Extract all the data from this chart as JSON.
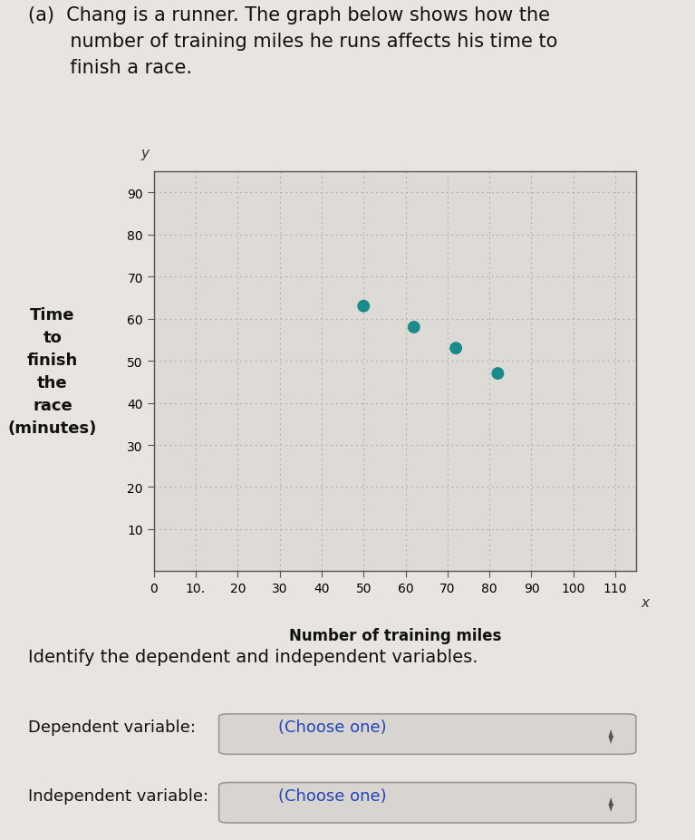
{
  "scatter_x": [
    50,
    62,
    72,
    82
  ],
  "scatter_y": [
    63,
    58,
    53,
    47
  ],
  "dot_color": "#1a8a8a",
  "dot_size": 100,
  "xlabel": "Number of training miles",
  "ylabel_lines": [
    "Time",
    "to",
    "finish",
    "the",
    "race",
    "(minutes)"
  ],
  "xlim": [
    0,
    115
  ],
  "ylim": [
    0,
    95
  ],
  "xticks": [
    0,
    10,
    20,
    30,
    40,
    50,
    60,
    70,
    80,
    90,
    100,
    110
  ],
  "yticks": [
    10,
    20,
    30,
    40,
    50,
    60,
    70,
    80,
    90
  ],
  "grid_color": "#b8b4b0",
  "plot_bg_color": "#dedad6",
  "outer_bg": "#c8c4c0",
  "page_bg": "#e8e4e0",
  "chart_border_color": "#888880",
  "text_dependent": "Dependent variable:",
  "text_independent": "Independent variable:",
  "choose_one": "(Choose one)",
  "identify_text": "Identify the dependent and independent variables.",
  "title_text": "(a)  Chang is a runner. The graph below shows how the\n       number of training miles he runs affects his time to\n       finish a race.",
  "axis_label_fontsize": 11,
  "tick_fontsize": 10,
  "title_fontsize": 15,
  "ylabel_fontsize": 13,
  "choose_color": "#2244bb",
  "dropdown_bg": "#d8d4d0",
  "dropdown_border": "#999999"
}
